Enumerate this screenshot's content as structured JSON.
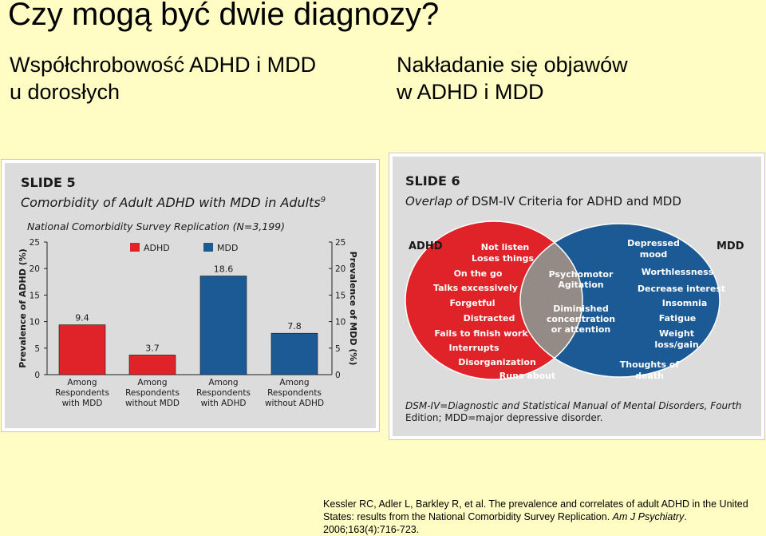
{
  "page": {
    "title": "Czy mogą być dwie diagnozy?",
    "left_subheading": [
      "Współchrobowość ADHD i MDD",
      "u dorosłych"
    ],
    "right_subheading": [
      "Nakładanie się objawów",
      "w ADHD i MDD"
    ]
  },
  "slide5": {
    "label": "SLIDE 5",
    "title": "Comorbidity of Adult ADHD with MDD in Adults",
    "title_ref": "9",
    "subtitle": "National Comorbidity Survey Replication (N=3,199)",
    "left_axis_label": "Prevalence of ADHD (%)",
    "right_axis_label": "Prevalence of MDD (%)",
    "legend": {
      "adhd": "ADHD",
      "mdd": "MDD"
    },
    "colors": {
      "adhd": "#e02229",
      "mdd": "#1c5a96"
    }
  },
  "chart_data": {
    "type": "bar",
    "categories": [
      "Among Respondents with MDD",
      "Among Respondents without MDD",
      "Among Respondents with ADHD",
      "Among Respondents without ADHD"
    ],
    "category_lines": [
      [
        "Among",
        "Respondents",
        "with MDD"
      ],
      [
        "Among",
        "Respondents",
        "without MDD"
      ],
      [
        "Among",
        "Respondents",
        "with ADHD"
      ],
      [
        "Among",
        "Respondents",
        "without ADHD"
      ]
    ],
    "series": [
      {
        "name": "ADHD",
        "values": [
          9.4,
          3.7,
          null,
          null
        ],
        "axis": "left"
      },
      {
        "name": "MDD",
        "values": [
          null,
          null,
          18.6,
          7.8
        ],
        "axis": "right"
      }
    ],
    "value_labels": [
      "9.4",
      "3.7",
      "18.6",
      "7.8"
    ],
    "ylabel": "Prevalence of ADHD (%)",
    "y2label": "Prevalence of MDD (%)",
    "ylim": [
      0,
      25
    ],
    "yticks": [
      0,
      5,
      10,
      15,
      20,
      25
    ],
    "legend_position": "top"
  },
  "slide6": {
    "label": "SLIDE 6",
    "title_prefix": "Overlap of",
    "title_rest": "DSM-IV Criteria for ADHD and MDD",
    "adhd_label": "ADHD",
    "mdd_label": "MDD",
    "adhd_only": [
      "Not listen",
      "Loses things",
      "On the go",
      "Talks excessively",
      "Forgetful",
      "Distracted",
      "Fails to finish work",
      "Interrupts",
      "Disorganization",
      "Runs about"
    ],
    "overlap": [
      "Psychomotor",
      "Agitation",
      "Diminished",
      "concentration",
      "or attention"
    ],
    "mdd_only": [
      "Depressed",
      "mood",
      "Worthlessness",
      "Decrease interest",
      "Insomnia",
      "Fatigue",
      "Weight",
      "loss/gain",
      "Thoughts of",
      "death"
    ],
    "footnote_line1": "DSM-IV=Diagnostic and Statistical Manual of Mental Disorders, Fourth",
    "footnote_line2": "Edition; MDD=major depressive disorder.",
    "colors": {
      "adhd": "#e02229",
      "mdd": "#1c5a96",
      "overlap": "#948b86"
    }
  },
  "citation": {
    "text": "Kessler RC, Adler L, Barkley R, et al. The prevalence and correlates of adult ADHD in the United States: results from the National Comorbidity Survey Replication.",
    "journal": "Am J Psychiatry",
    "details": ". 2006;163(4):716-723."
  }
}
